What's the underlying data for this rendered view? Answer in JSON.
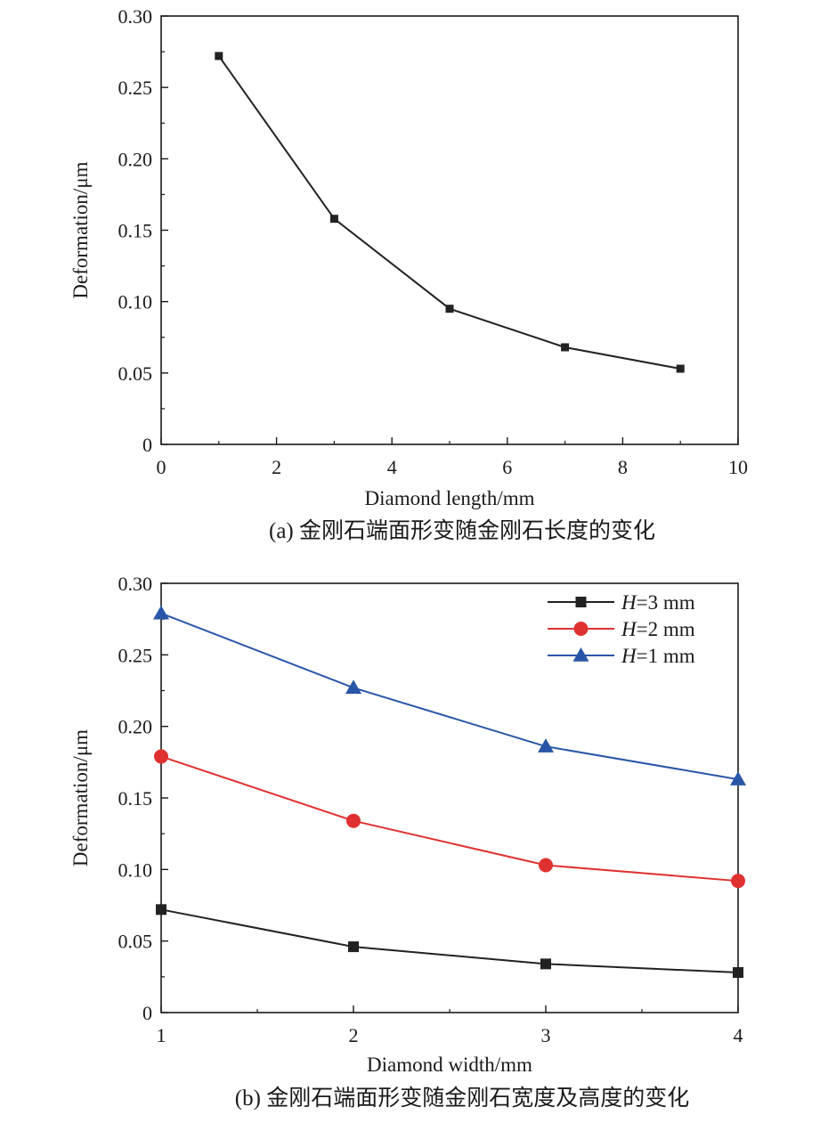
{
  "chart_data": [
    {
      "type": "line",
      "caption": "(a) 金刚石端面形变随金刚石长度的变化",
      "xlabel": "Diamond length/mm",
      "ylabel": "Deformation/μm",
      "xlim": [
        0,
        10
      ],
      "ylim": [
        0,
        0.3
      ],
      "xticks": [
        0,
        2,
        4,
        6,
        8,
        10
      ],
      "xtick_labels": [
        "0",
        "2",
        "4",
        "6",
        "8",
        "10"
      ],
      "yticks": [
        0,
        0.05,
        0.1,
        0.15,
        0.2,
        0.25,
        0.3
      ],
      "ytick_labels": [
        "0",
        "0.05",
        "0.10",
        "0.15",
        "0.20",
        "0.25",
        "0.30"
      ],
      "grid": false,
      "legend": null,
      "series": [
        {
          "color": "#222222",
          "marker": "square",
          "x": [
            1,
            3,
            5,
            7,
            9
          ],
          "values": [
            0.272,
            0.158,
            0.095,
            0.068,
            0.053
          ]
        }
      ]
    },
    {
      "type": "line",
      "caption": "(b) 金刚石端面形变随金刚石宽度及高度的变化",
      "xlabel": "Diamond width/mm",
      "ylabel": "Deformation/μm",
      "xlim": [
        1,
        4
      ],
      "ylim": [
        0,
        0.3
      ],
      "xticks": [
        1,
        2,
        3,
        4
      ],
      "xtick_labels": [
        "1",
        "2",
        "3",
        "4"
      ],
      "yticks": [
        0,
        0.05,
        0.1,
        0.15,
        0.2,
        0.25,
        0.3
      ],
      "ytick_labels": [
        "0",
        "0.05",
        "0.10",
        "0.15",
        "0.20",
        "0.25",
        "0.30"
      ],
      "grid": false,
      "legend": "top-right",
      "series": [
        {
          "name_var": "H",
          "name_rest": "=3 mm",
          "color": "#222222",
          "marker": "square",
          "x": [
            1,
            2,
            3,
            4
          ],
          "values": [
            0.072,
            0.046,
            0.034,
            0.028
          ]
        },
        {
          "name_var": "H",
          "name_rest": "=2 mm",
          "color": "#e03131",
          "marker": "circle",
          "x": [
            1,
            2,
            3,
            4
          ],
          "values": [
            0.179,
            0.134,
            0.103,
            0.092
          ]
        },
        {
          "name_var": "H",
          "name_rest": "=1 mm",
          "color": "#2a56a8",
          "marker": "triangle",
          "x": [
            1,
            2,
            3,
            4
          ],
          "values": [
            0.279,
            0.227,
            0.186,
            0.163
          ]
        }
      ]
    }
  ]
}
